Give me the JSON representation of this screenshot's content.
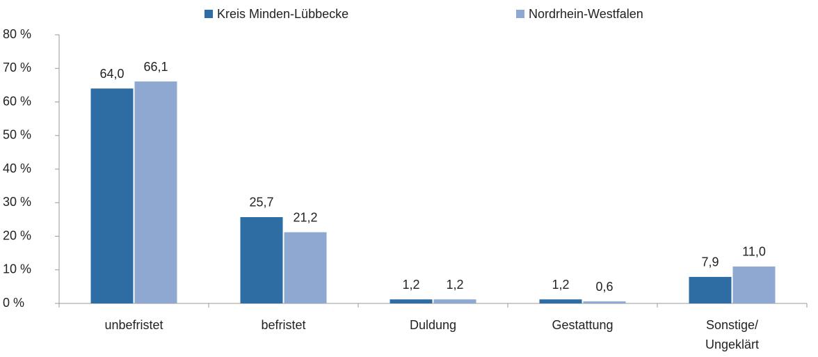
{
  "chart_data": {
    "type": "bar",
    "categories": [
      "unbefristet",
      "befristet",
      "Duldung",
      "Gestattung",
      "Sonstige/ Ungeklärt"
    ],
    "series": [
      {
        "name": "Kreis Minden-Lübbecke",
        "color": "#2e6ca4",
        "values": [
          64.0,
          25.7,
          1.2,
          1.2,
          7.9
        ],
        "value_labels": [
          "64,0",
          "25,7",
          "1,2",
          "1,2",
          "7,9"
        ]
      },
      {
        "name": "Nordrhein-Westfalen",
        "color": "#8fa8d2",
        "values": [
          66.1,
          21.2,
          1.2,
          0.6,
          11.0
        ],
        "value_labels": [
          "66,1",
          "21,2",
          "1,2",
          "0,6",
          "11,0"
        ]
      }
    ],
    "ylim": [
      0,
      80
    ],
    "yticks": [
      {
        "value": 0,
        "label": "0 %"
      },
      {
        "value": 10,
        "label": "10 %"
      },
      {
        "value": 20,
        "label": "20 %"
      },
      {
        "value": 30,
        "label": "30 %"
      },
      {
        "value": 40,
        "label": "40 %"
      },
      {
        "value": 50,
        "label": "50 %"
      },
      {
        "value": 60,
        "label": "60 %"
      },
      {
        "value": 70,
        "label": "70 %"
      },
      {
        "value": 80,
        "label": "80 %"
      }
    ],
    "legend": "top"
  }
}
